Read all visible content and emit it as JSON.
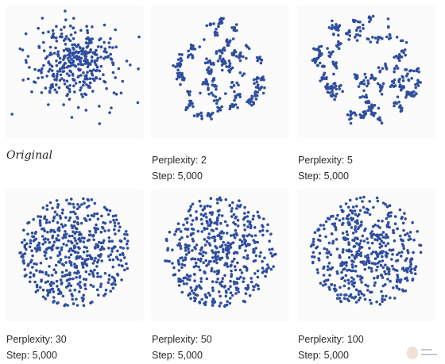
{
  "point_color": "#2f4ea0",
  "panels": [
    {
      "caption": "Original",
      "italic": true,
      "step": "",
      "pattern": "gaussian",
      "point_count": 370,
      "seed": 7
    },
    {
      "caption": "Perplexity: 2",
      "italic": false,
      "step": "Step: 5,000",
      "pattern": "clusters",
      "point_count": 320,
      "seed": 11
    },
    {
      "caption": "Perplexity: 5",
      "italic": false,
      "step": "Step: 5,000",
      "pattern": "clusters-dense",
      "point_count": 380,
      "seed": 23
    },
    {
      "caption": "Perplexity: 30",
      "italic": false,
      "step": "Step: 5,000",
      "pattern": "uniform-disc",
      "point_count": 520,
      "seed": 31
    },
    {
      "caption": "Perplexity: 50",
      "italic": false,
      "step": "Step: 5,000",
      "pattern": "uniform-disc",
      "point_count": 500,
      "seed": 47
    },
    {
      "caption": "Perplexity: 100",
      "italic": false,
      "step": "Step: 5,000",
      "pattern": "uniform-disc",
      "point_count": 500,
      "seed": 59
    }
  ],
  "chart_data": {
    "type": "scatter",
    "panels": [
      "Original",
      "Perplexity: 2",
      "Perplexity: 5",
      "Perplexity: 30",
      "Perplexity: 50",
      "Perplexity: 100"
    ],
    "steps": [
      "",
      "Step: 5,000",
      "Step: 5,000",
      "Step: 5,000",
      "Step: 5,000",
      "Step: 5,000"
    ],
    "grid": false,
    "legend": "none",
    "axes": "hidden"
  },
  "watermark": {
    "icon": "avatar-watermark-icon"
  }
}
